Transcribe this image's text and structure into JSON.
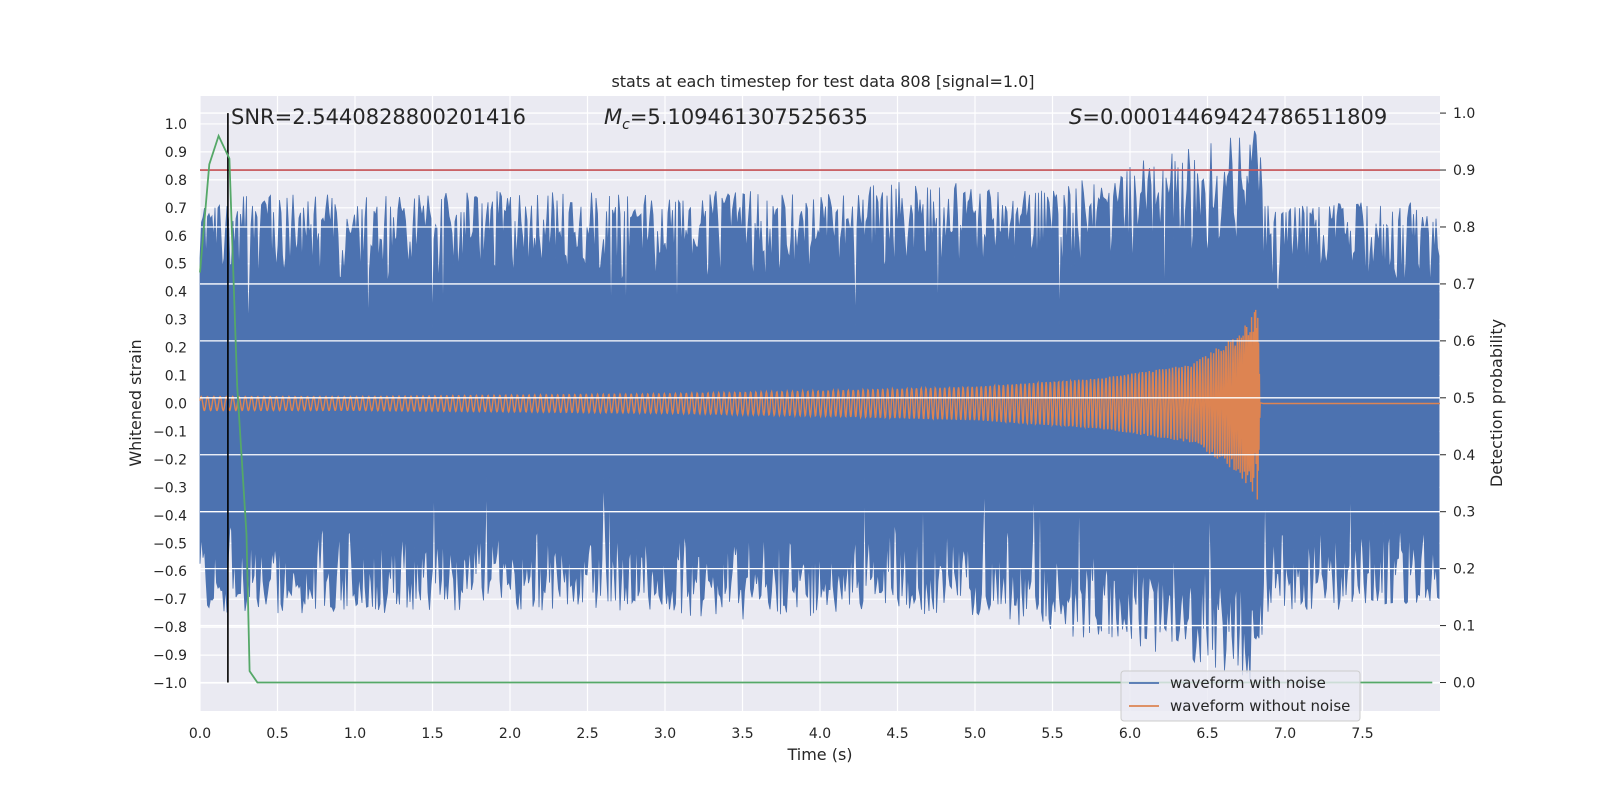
{
  "chart_data": {
    "type": "line",
    "title": "stats at each timestep for test data 808 [signal=1.0]",
    "xlabel": "Time (s)",
    "ylabel": "Whitened strain",
    "y2label": "Detection probability",
    "xlim": [
      0.0,
      8.0
    ],
    "ylim": [
      -1.1,
      1.1
    ],
    "y2lim": [
      -0.05,
      1.03
    ],
    "xticks": [
      "0.0",
      "0.5",
      "1.0",
      "1.5",
      "2.0",
      "2.5",
      "3.0",
      "3.5",
      "4.0",
      "4.5",
      "5.0",
      "5.5",
      "6.0",
      "6.5",
      "7.0",
      "7.5"
    ],
    "yticks": [
      "1.0",
      "0.9",
      "0.8",
      "0.7",
      "0.6",
      "0.5",
      "0.4",
      "0.3",
      "0.2",
      "0.1",
      "0.0",
      "−0.1",
      "−0.2",
      "−0.3",
      "−0.4",
      "−0.5",
      "−0.6",
      "−0.7",
      "−0.8",
      "−0.9",
      "−1.0"
    ],
    "y2ticks": [
      "1.0",
      "0.9",
      "0.8",
      "0.7",
      "0.6",
      "0.5",
      "0.4",
      "0.3",
      "0.2",
      "0.1",
      "0.0"
    ],
    "grid": true,
    "legend_position": "lower-right",
    "annotations": {
      "snr": "SNR=2.5440828800201416",
      "mc_symbol": "M",
      "mc_sub": "c",
      "mc_value": "=5.109461307525635",
      "s_symbol": "S",
      "s_value": "=0.00014469424786511809"
    },
    "threshold_y2": 0.9,
    "marker_x": 0.18,
    "series": [
      {
        "name": "waveform with noise",
        "color": "#4c72b0",
        "envelope_upper": [
          0.72,
          0.75,
          0.75,
          0.75,
          0.76,
          0.76,
          0.76,
          0.76,
          0.76,
          0.76,
          0.75,
          0.8,
          0.8,
          0.76,
          0.8,
          0.86,
          0.98,
          0.7,
          0.72,
          0.72,
          0.72,
          0.72
        ],
        "envelope_lower": [
          -0.75,
          -0.76,
          -0.75,
          -0.75,
          -0.74,
          -0.74,
          -0.75,
          -0.75,
          -0.76,
          -0.78,
          -0.76,
          -0.74,
          -0.76,
          -0.78,
          -0.84,
          -0.86,
          -1.0,
          -0.74,
          -0.74,
          -0.74,
          -0.72,
          -0.72
        ],
        "envelope_x": [
          0.0,
          0.4,
          0.8,
          1.2,
          1.6,
          2.0,
          2.4,
          2.8,
          3.2,
          3.6,
          4.0,
          4.4,
          4.8,
          5.2,
          5.6,
          6.0,
          6.82,
          6.9,
          7.0,
          7.4,
          7.8,
          8.0
        ]
      },
      {
        "name": "waveform without noise",
        "color": "#dd8452",
        "amplitude": [
          0.025,
          0.025,
          0.03,
          0.035,
          0.045,
          0.06,
          0.09,
          0.14,
          0.25,
          0.35,
          0.005
        ],
        "amplitude_x": [
          0.0,
          1.0,
          2.0,
          3.0,
          4.0,
          5.0,
          5.8,
          6.4,
          6.7,
          6.83,
          6.84
        ],
        "end_x": 6.84
      },
      {
        "name": "detection probability",
        "color": "#55a868",
        "axis": "right",
        "x": [
          0.0,
          0.06,
          0.12,
          0.19,
          0.24,
          0.3,
          0.32,
          0.37,
          0.55,
          7.95
        ],
        "values": [
          0.72,
          0.91,
          0.96,
          0.92,
          0.52,
          0.26,
          0.02,
          0.0,
          0.0,
          0.0
        ]
      }
    ]
  }
}
